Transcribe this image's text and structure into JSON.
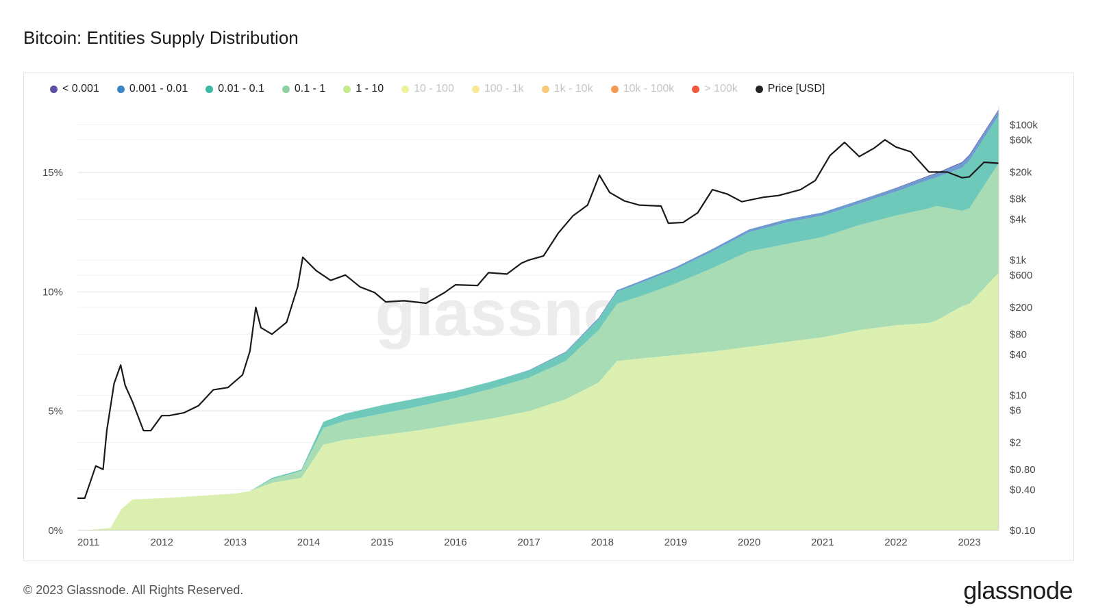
{
  "title": "Bitcoin: Entities Supply Distribution",
  "footer": "© 2023 Glassnode. All Rights Reserved.",
  "brand": "glassnode",
  "watermark": "glassnode",
  "chart_data": {
    "type": "area",
    "legend_placement": "top-left",
    "grid": true,
    "legend": [
      {
        "name": "< 0.001",
        "color": "#5b4fa5",
        "dimmed": false
      },
      {
        "name": "0.001 - 0.01",
        "color": "#3c84c4",
        "dimmed": false
      },
      {
        "name": "0.01 - 0.1",
        "color": "#3fb7a8",
        "dimmed": false
      },
      {
        "name": "0.1 - 1",
        "color": "#8fd1a0",
        "dimmed": false
      },
      {
        "name": "1 - 10",
        "color": "#c5e98e",
        "dimmed": false
      },
      {
        "name": "10 - 100",
        "color": "#ecf39a",
        "dimmed": true
      },
      {
        "name": "100 - 1k",
        "color": "#fbe897",
        "dimmed": true
      },
      {
        "name": "1k - 10k",
        "color": "#fac978",
        "dimmed": true
      },
      {
        "name": "10k - 100k",
        "color": "#f59a52",
        "dimmed": true
      },
      {
        "name": "> 100k",
        "color": "#ef5a3c",
        "dimmed": true
      },
      {
        "name": "Price [USD]",
        "color": "#222222",
        "dimmed": false
      }
    ],
    "x_ticks": [
      "2011",
      "2012",
      "2013",
      "2014",
      "2015",
      "2016",
      "2017",
      "2018",
      "2019",
      "2020",
      "2021",
      "2022",
      "2023"
    ],
    "y_left_ticks": [
      "0%",
      "5%",
      "10%",
      "15%"
    ],
    "y_left_range": [
      0,
      17.5
    ],
    "y_right_ticks": [
      "$100k",
      "$60k",
      "$20k",
      "$8k",
      "$4k",
      "$1k",
      "$600",
      "$200",
      "$80",
      "$40",
      "$10",
      "$6",
      "$2",
      "$0.80",
      "$0.40",
      "$0.10"
    ],
    "y_right_scale": "log",
    "y_right_range": [
      0.1,
      150000
    ],
    "x": [
      2010.9,
      2011.3,
      2011.45,
      2011.6,
      2012.0,
      2012.5,
      2013.0,
      2013.2,
      2013.5,
      2013.9,
      2014.2,
      2014.5,
      2015.0,
      2015.5,
      2016.0,
      2016.5,
      2017.0,
      2017.5,
      2017.95,
      2018.2,
      2018.5,
      2019.0,
      2019.5,
      2020.0,
      2020.5,
      2021.0,
      2021.5,
      2022.0,
      2022.45,
      2022.55,
      2022.9,
      2023.0,
      2023.4
    ],
    "series": [
      {
        "name": "1 - 10",
        "color": "#dbf0b0",
        "values": [
          0.0,
          0.1,
          0.9,
          1.3,
          1.35,
          1.45,
          1.55,
          1.65,
          2.0,
          2.2,
          3.6,
          3.8,
          4.0,
          4.2,
          4.45,
          4.7,
          5.0,
          5.5,
          6.2,
          7.1,
          7.2,
          7.35,
          7.5,
          7.7,
          7.9,
          8.1,
          8.4,
          8.6,
          8.7,
          8.8,
          9.4,
          9.5,
          10.8
        ]
      },
      {
        "name": "0.1 - 1",
        "color": "#a8dcb4",
        "values": [
          0.0,
          0.0,
          0.0,
          0.0,
          0.0,
          0.0,
          0.0,
          0.0,
          0.15,
          0.3,
          0.7,
          0.8,
          0.9,
          1.0,
          1.1,
          1.25,
          1.4,
          1.6,
          2.2,
          2.4,
          2.6,
          3.0,
          3.5,
          4.0,
          4.1,
          4.2,
          4.4,
          4.6,
          4.8,
          4.8,
          4.0,
          4.0,
          4.6
        ]
      },
      {
        "name": "0.01 - 0.1",
        "color": "#6ec9bb",
        "values": [
          0.0,
          0.0,
          0.0,
          0.0,
          0.0,
          0.0,
          0.0,
          0.0,
          0.05,
          0.05,
          0.25,
          0.3,
          0.35,
          0.35,
          0.3,
          0.3,
          0.3,
          0.35,
          0.45,
          0.5,
          0.55,
          0.6,
          0.7,
          0.8,
          0.9,
          0.9,
          0.9,
          1.0,
          1.2,
          1.2,
          1.8,
          2.0,
          2.0
        ]
      },
      {
        "name": "0.001 - 0.01",
        "color": "#6f9cd0",
        "values": [
          0.0,
          0.0,
          0.0,
          0.0,
          0.0,
          0.0,
          0.0,
          0.0,
          0.0,
          0.0,
          0.0,
          0.0,
          0.0,
          0.0,
          0.0,
          0.0,
          0.02,
          0.04,
          0.06,
          0.07,
          0.08,
          0.09,
          0.1,
          0.12,
          0.13,
          0.13,
          0.14,
          0.14,
          0.15,
          0.15,
          0.2,
          0.2,
          0.2
        ]
      },
      {
        "name": "< 0.001",
        "color": "#6b63b0",
        "values": [
          0.0,
          0.0,
          0.0,
          0.0,
          0.0,
          0.0,
          0.0,
          0.0,
          0.0,
          0.0,
          0.0,
          0.0,
          0.0,
          0.0,
          0.0,
          0.0,
          0.0,
          0.0,
          0.0,
          0.0,
          0.0,
          0.0,
          0.0,
          0.0,
          0.0,
          0.0,
          0.0,
          0.02,
          0.03,
          0.03,
          0.04,
          0.05,
          0.05
        ]
      }
    ],
    "price": {
      "name": "Price [USD]",
      "color": "#1a1a1a",
      "x": [
        2010.85,
        2010.95,
        2011.1,
        2011.2,
        2011.25,
        2011.35,
        2011.44,
        2011.5,
        2011.6,
        2011.75,
        2011.85,
        2012.0,
        2012.1,
        2012.3,
        2012.5,
        2012.7,
        2012.9,
        2013.1,
        2013.2,
        2013.28,
        2013.35,
        2013.5,
        2013.7,
        2013.85,
        2013.92,
        2014.1,
        2014.3,
        2014.5,
        2014.7,
        2014.9,
        2015.05,
        2015.3,
        2015.6,
        2015.85,
        2016.0,
        2016.3,
        2016.45,
        2016.7,
        2016.9,
        2017.0,
        2017.2,
        2017.4,
        2017.6,
        2017.8,
        2017.96,
        2018.1,
        2018.3,
        2018.5,
        2018.8,
        2018.9,
        2019.1,
        2019.3,
        2019.5,
        2019.7,
        2019.9,
        2020.2,
        2020.4,
        2020.7,
        2020.9,
        2021.1,
        2021.3,
        2021.5,
        2021.7,
        2021.85,
        2022.0,
        2022.2,
        2022.45,
        2022.7,
        2022.9,
        2023.0,
        2023.2,
        2023.4
      ],
      "values": [
        0.3,
        0.3,
        0.9,
        0.8,
        3,
        15,
        28,
        14,
        8,
        3,
        3,
        5,
        5,
        5.5,
        7,
        12,
        13,
        20,
        45,
        200,
        100,
        80,
        120,
        400,
        1100,
        700,
        500,
        600,
        400,
        330,
        240,
        250,
        230,
        330,
        430,
        420,
        650,
        620,
        900,
        1000,
        1150,
        2500,
        4500,
        6500,
        18000,
        10000,
        7500,
        6500,
        6300,
        3500,
        3600,
        5000,
        11000,
        9500,
        7300,
        8500,
        9000,
        11000,
        15000,
        35000,
        55000,
        34000,
        45000,
        60000,
        47000,
        40000,
        20000,
        20000,
        16500,
        17000,
        28000,
        27000
      ]
    }
  }
}
